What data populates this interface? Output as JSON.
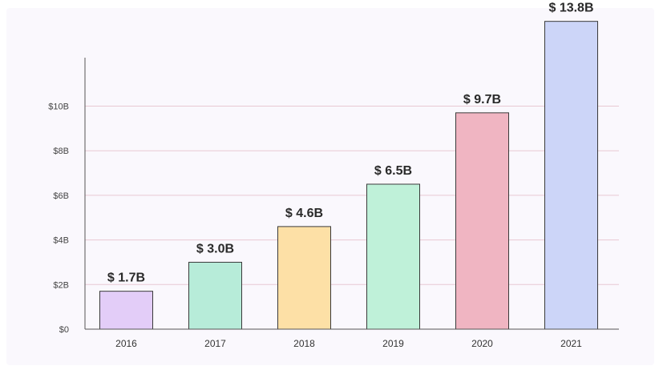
{
  "chart_data": {
    "type": "bar",
    "categories": [
      "2016",
      "2017",
      "2018",
      "2019",
      "2020",
      "2021"
    ],
    "values": [
      1.7,
      3.0,
      4.6,
      6.5,
      9.7,
      13.8
    ],
    "data_labels": [
      "$ 1.7B",
      "$ 3.0B",
      "$ 4.6B",
      "$ 6.5B",
      "$ 9.7B",
      "$ 13.8B"
    ],
    "colors": [
      "#e3cdf8",
      "#b7ecd9",
      "#fde0a6",
      "#bff1d9",
      "#f0b5c2",
      "#ccd5f8"
    ],
    "title": "",
    "xlabel": "",
    "ylabel": "",
    "ylim": [
      0,
      11
    ],
    "yticks": [
      0,
      2,
      4,
      6,
      8,
      10
    ],
    "ytick_labels": [
      "$0",
      "$2B",
      "$4B",
      "$6B",
      "$8B",
      "$10B"
    ],
    "grid": true,
    "grid_color": "#e8c9d3",
    "bar_border_color": "#3a3a3a",
    "legend": "none"
  }
}
